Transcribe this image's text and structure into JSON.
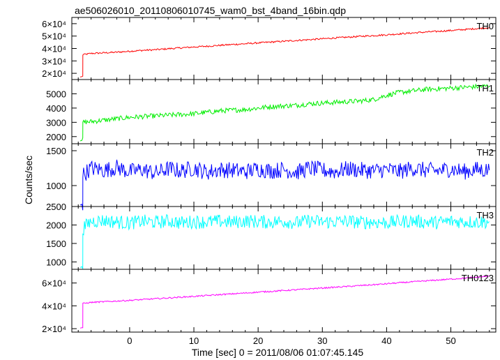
{
  "title": "ae506026010_20110806010745_wam0_bst_4band_16bin.qdp",
  "ylabel": "Counts/sec",
  "xlabel": "Time [sec] 0 = 2011/08/06 01:07:45.145",
  "chart_data": [
    {
      "type": "line",
      "name": "TH0",
      "color": "#ff0000",
      "xlim": [
        -9,
        57
      ],
      "ylim": [
        15000,
        65000
      ],
      "yticks": [
        {
          "v": 20000,
          "label": "2×10⁴"
        },
        {
          "v": 30000,
          "label": "3×10⁴"
        },
        {
          "v": 40000,
          "label": "4×10⁴"
        },
        {
          "v": 50000,
          "label": "5×10⁴"
        },
        {
          "v": 60000,
          "label": "6×10⁴"
        }
      ],
      "x": [
        -7.7,
        -7.3,
        -7.29,
        -6,
        -4,
        -2,
        0,
        2,
        4,
        6,
        8,
        10,
        12,
        14,
        16,
        18,
        20,
        22,
        24,
        26,
        28,
        30,
        32,
        34,
        36,
        38,
        40,
        42,
        44,
        46,
        48,
        50,
        52,
        54,
        56
      ],
      "y": [
        17000,
        17500,
        35000,
        36000,
        36500,
        37000,
        37800,
        38500,
        39000,
        39800,
        40500,
        41200,
        41800,
        42500,
        43200,
        43800,
        44500,
        45200,
        45800,
        46500,
        47100,
        47800,
        48500,
        49100,
        49800,
        50400,
        51000,
        51800,
        52500,
        53200,
        53800,
        54500,
        55200,
        56000,
        56800
      ]
    },
    {
      "type": "line",
      "name": "TH1",
      "color": "#00ee00",
      "xlim": [
        -9,
        57
      ],
      "ylim": [
        1500,
        6000
      ],
      "yticks": [
        {
          "v": 2000,
          "label": "2000"
        },
        {
          "v": 3000,
          "label": "3000"
        },
        {
          "v": 4000,
          "label": "4000"
        },
        {
          "v": 5000,
          "label": "5000"
        }
      ],
      "x": [
        -7.7,
        -7.3,
        -7.29,
        -6,
        -4,
        -2,
        0,
        2,
        4,
        6,
        8,
        10,
        12,
        14,
        16,
        18,
        20,
        22,
        24,
        26,
        28,
        30,
        32,
        34,
        36,
        38,
        40,
        42,
        44,
        46,
        48,
        50,
        52,
        54,
        56
      ],
      "y": [
        1700,
        1750,
        3000,
        3050,
        3150,
        3250,
        3350,
        3400,
        3450,
        3500,
        3550,
        3600,
        3700,
        3800,
        3850,
        3900,
        4000,
        4100,
        4150,
        4200,
        4300,
        4350,
        4400,
        4450,
        4500,
        4600,
        4900,
        5100,
        5200,
        5300,
        5350,
        5400,
        5450,
        5500,
        5550
      ]
    },
    {
      "type": "line",
      "name": "TH2",
      "color": "#0000ff",
      "xlim": [
        -9,
        57
      ],
      "ylim": [
        700,
        1600
      ],
      "yticks": [
        {
          "v": 1000,
          "label": "1000"
        },
        {
          "v": 1500,
          "label": "1500"
        }
      ],
      "x": [
        -7.7,
        -7.3,
        -7.29,
        -6,
        -4,
        -2,
        0,
        2,
        4,
        6,
        8,
        10,
        12,
        14,
        16,
        18,
        20,
        22,
        24,
        26,
        28,
        30,
        32,
        34,
        36,
        38,
        40,
        42,
        44,
        46,
        48,
        50,
        52,
        54,
        56
      ],
      "y": [
        720,
        740,
        1150,
        1250,
        1220,
        1260,
        1200,
        1230,
        1180,
        1240,
        1210,
        1250,
        1190,
        1230,
        1220,
        1200,
        1240,
        1210,
        1230,
        1190,
        1250,
        1220,
        1200,
        1240,
        1220,
        1210,
        1230,
        1200,
        1250,
        1220,
        1210,
        1240,
        1200,
        1230,
        1220
      ]
    },
    {
      "type": "line",
      "name": "TH3",
      "color": "#00ffff",
      "xlim": [
        -9,
        57
      ],
      "ylim": [
        800,
        2500
      ],
      "yticks": [
        {
          "v": 1000,
          "label": "1000"
        },
        {
          "v": 1500,
          "label": "1500"
        },
        {
          "v": 2000,
          "label": "2000"
        },
        {
          "v": 2500,
          "label": "2500"
        }
      ],
      "x": [
        -7.7,
        -7.3,
        -7.29,
        -6,
        -4,
        -2,
        0,
        2,
        4,
        6,
        8,
        10,
        12,
        14,
        16,
        18,
        20,
        22,
        24,
        26,
        28,
        30,
        32,
        34,
        36,
        38,
        40,
        42,
        44,
        46,
        48,
        50,
        52,
        54,
        56
      ],
      "y": [
        850,
        880,
        1900,
        2100,
        2120,
        2080,
        2050,
        2100,
        2070,
        2110,
        2060,
        2090,
        2080,
        2100,
        2070,
        2110,
        2090,
        2080,
        2100,
        2060,
        2110,
        2080,
        2090,
        2100,
        2070,
        2080,
        2060,
        2090,
        2110,
        2080,
        2070,
        2100,
        2090,
        2080,
        2090
      ]
    },
    {
      "type": "line",
      "name": "TH0123",
      "color": "#ff00ff",
      "xlim": [
        -9,
        57
      ],
      "ylim": [
        17000,
        72000
      ],
      "yticks": [
        {
          "v": 20000,
          "label": "2×10⁴"
        },
        {
          "v": 40000,
          "label": "4×10⁴"
        },
        {
          "v": 60000,
          "label": "6×10⁴"
        }
      ],
      "x": [
        -7.7,
        -7.3,
        -7.29,
        -6,
        -4,
        -2,
        0,
        2,
        4,
        6,
        8,
        10,
        12,
        14,
        16,
        18,
        20,
        22,
        24,
        26,
        28,
        30,
        32,
        34,
        36,
        38,
        40,
        42,
        44,
        46,
        48,
        50,
        52,
        54,
        56
      ],
      "y": [
        20500,
        21000,
        42000,
        43000,
        43600,
        44200,
        44800,
        45500,
        46200,
        46900,
        47600,
        48300,
        49000,
        49800,
        50500,
        51200,
        52000,
        52700,
        53400,
        54100,
        54900,
        55600,
        56300,
        57000,
        57800,
        58500,
        59300,
        60200,
        61000,
        61800,
        62600,
        63400,
        64200,
        65100,
        66000
      ]
    }
  ],
  "xaxis": {
    "ticks": [
      {
        "v": 0,
        "label": "0"
      },
      {
        "v": 10,
        "label": "10"
      },
      {
        "v": 20,
        "label": "20"
      },
      {
        "v": 30,
        "label": "30"
      },
      {
        "v": 40,
        "label": "40"
      },
      {
        "v": 50,
        "label": "50"
      }
    ]
  }
}
